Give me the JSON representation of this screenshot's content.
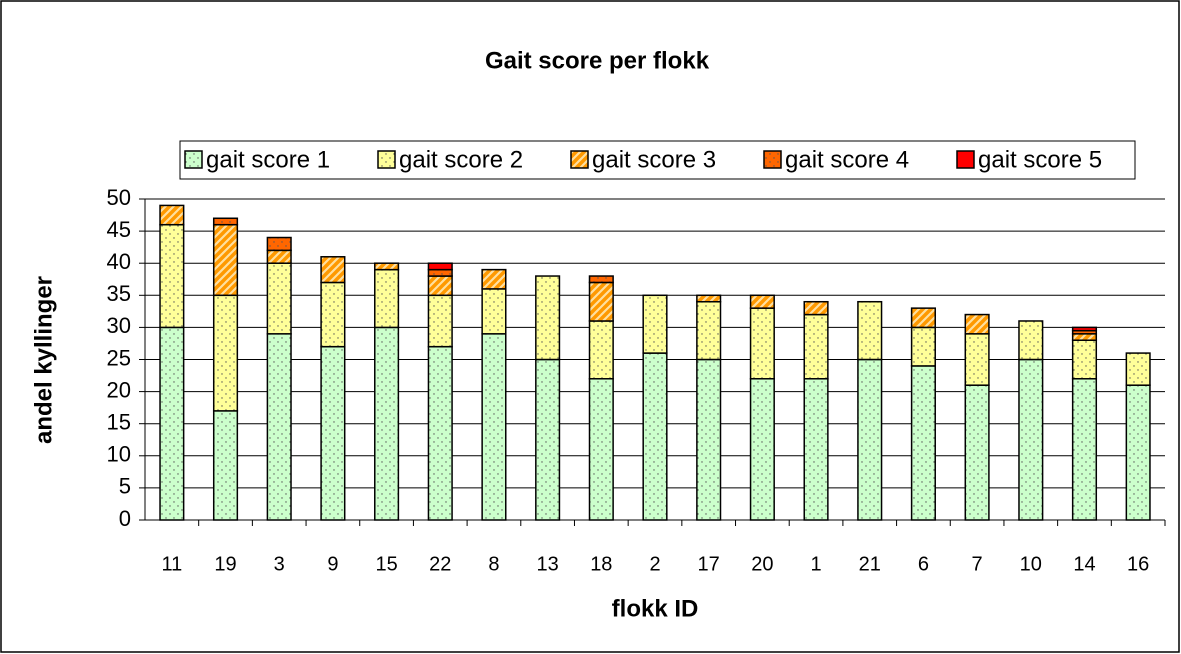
{
  "chart_data": {
    "type": "stacked_bar",
    "title": "Gait score per flokk",
    "x_label": "flokk ID",
    "y_label": "andel kyllinger",
    "categories": [
      "11",
      "19",
      "3",
      "9",
      "15",
      "22",
      "8",
      "13",
      "18",
      "2",
      "17",
      "20",
      "1",
      "21",
      "6",
      "7",
      "10",
      "14",
      "16"
    ],
    "series": [
      {
        "name": "gait score 1",
        "color": "#ccffcc",
        "values": [
          30,
          17,
          29,
          27,
          30,
          27,
          29,
          25,
          22,
          26,
          25,
          22,
          22,
          25,
          24,
          21,
          25,
          22,
          21
        ]
      },
      {
        "name": "gait score 2",
        "color": "#ffff99",
        "values": [
          16,
          18,
          11,
          10,
          9,
          8,
          7,
          13,
          9,
          9,
          9,
          11,
          10,
          9,
          6,
          8,
          6,
          6,
          5
        ]
      },
      {
        "name": "gait score 3",
        "color": "#ff9900",
        "values": [
          3,
          11,
          2,
          4,
          1,
          3,
          3,
          0,
          6,
          0,
          1,
          2,
          2,
          0,
          3,
          3,
          0,
          1,
          0
        ]
      },
      {
        "name": "gait score 4",
        "color": "#ff6600",
        "values": [
          0,
          1,
          2,
          0,
          0,
          1,
          0,
          0,
          1,
          0,
          0,
          0,
          0,
          0,
          0,
          0,
          0,
          0.5,
          0
        ]
      },
      {
        "name": "gait score 5",
        "color": "#ff0000",
        "values": [
          0,
          0,
          0,
          0,
          0,
          1,
          0,
          0,
          0,
          0,
          0,
          0,
          0,
          0,
          0,
          0,
          0,
          0.5,
          0
        ]
      }
    ],
    "ylim": [
      0,
      50
    ],
    "yticks": [
      0,
      5,
      10,
      15,
      20,
      25,
      30,
      35,
      40,
      45,
      50
    ],
    "grid": true,
    "legend": "top"
  }
}
